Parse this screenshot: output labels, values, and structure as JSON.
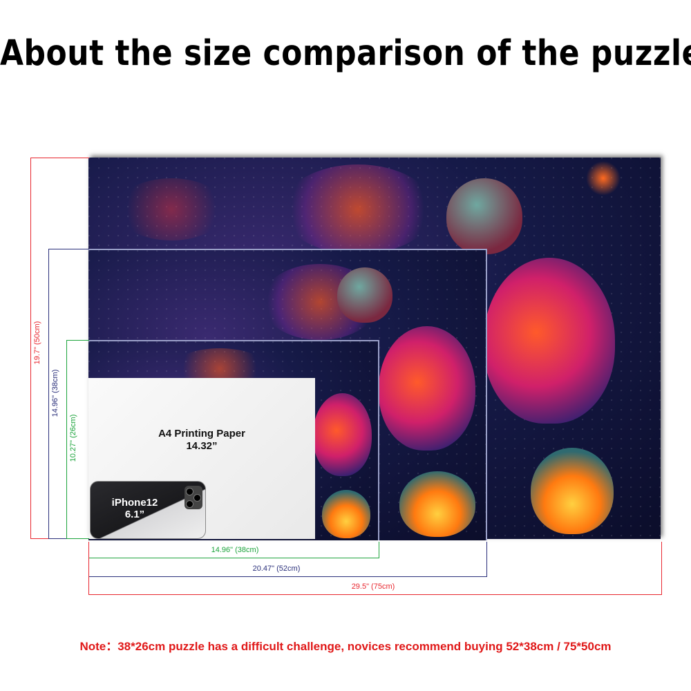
{
  "title": "About the size comparison of the puzzle",
  "puzzles": {
    "large": {
      "height_label": "19.7\" (50cm)",
      "width_label": "29.5\" (75cm)",
      "color": "#e8262e"
    },
    "medium": {
      "height_label": "14.96\" (38cm)",
      "width_label": "20.47\" (52cm)",
      "color": "#2a2f7a"
    },
    "small": {
      "height_label": "10.27\" (26cm)",
      "width_label": "14.96\" (38cm)",
      "color": "#1aa33a"
    }
  },
  "a4_paper": {
    "name": "A4 Printing Paper",
    "size": "14.32”"
  },
  "phone": {
    "name": "iPhone12",
    "size": "6.1”"
  },
  "note": "Note：38*26cm puzzle has a difficult challenge, novices recommend buying 52*38cm / 75*50cm",
  "colors": {
    "note": "#e01818",
    "background": "#ffffff"
  }
}
